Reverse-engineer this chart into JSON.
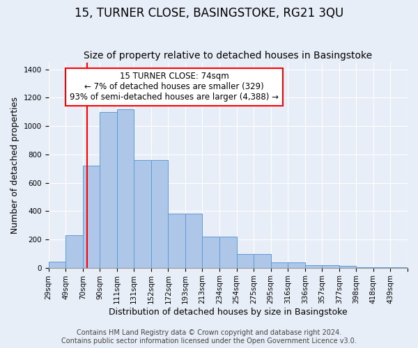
{
  "title1": "15, TURNER CLOSE, BASINGSTOKE, RG21 3QU",
  "title2": "Size of property relative to detached houses in Basingstoke",
  "xlabel": "Distribution of detached houses by size in Basingstoke",
  "ylabel": "Number of detached properties",
  "footnote": "Contains HM Land Registry data © Crown copyright and database right 2024.\nContains public sector information licensed under the Open Government Licence v3.0.",
  "bin_labels": [
    "29sqm",
    "49sqm",
    "70sqm",
    "90sqm",
    "111sqm",
    "131sqm",
    "152sqm",
    "172sqm",
    "193sqm",
    "213sqm",
    "234sqm",
    "254sqm",
    "275sqm",
    "295sqm",
    "316sqm",
    "336sqm",
    "357sqm",
    "377sqm",
    "398sqm",
    "418sqm",
    "439sqm"
  ],
  "bar_heights": [
    40,
    230,
    720,
    1100,
    1120,
    760,
    760,
    380,
    380,
    220,
    220,
    95,
    95,
    35,
    35,
    20,
    20,
    15,
    5,
    5,
    2
  ],
  "bar_color": "#aec6e8",
  "bar_edge_color": "#5b9bd5",
  "vline_x": 74,
  "vline_color": "red",
  "annotation_text": "15 TURNER CLOSE: 74sqm\n← 7% of detached houses are smaller (329)\n93% of semi-detached houses are larger (4,388) →",
  "annotation_box_color": "white",
  "annotation_border_color": "red",
  "ylim": [
    0,
    1450
  ],
  "background_color": "#e8eef7",
  "axes_background": "#e8eef7",
  "grid_color": "white",
  "title1_fontsize": 12,
  "title2_fontsize": 10,
  "xlabel_fontsize": 9,
  "ylabel_fontsize": 9,
  "tick_fontsize": 7.5,
  "annotation_fontsize": 8.5,
  "footnote_fontsize": 7
}
